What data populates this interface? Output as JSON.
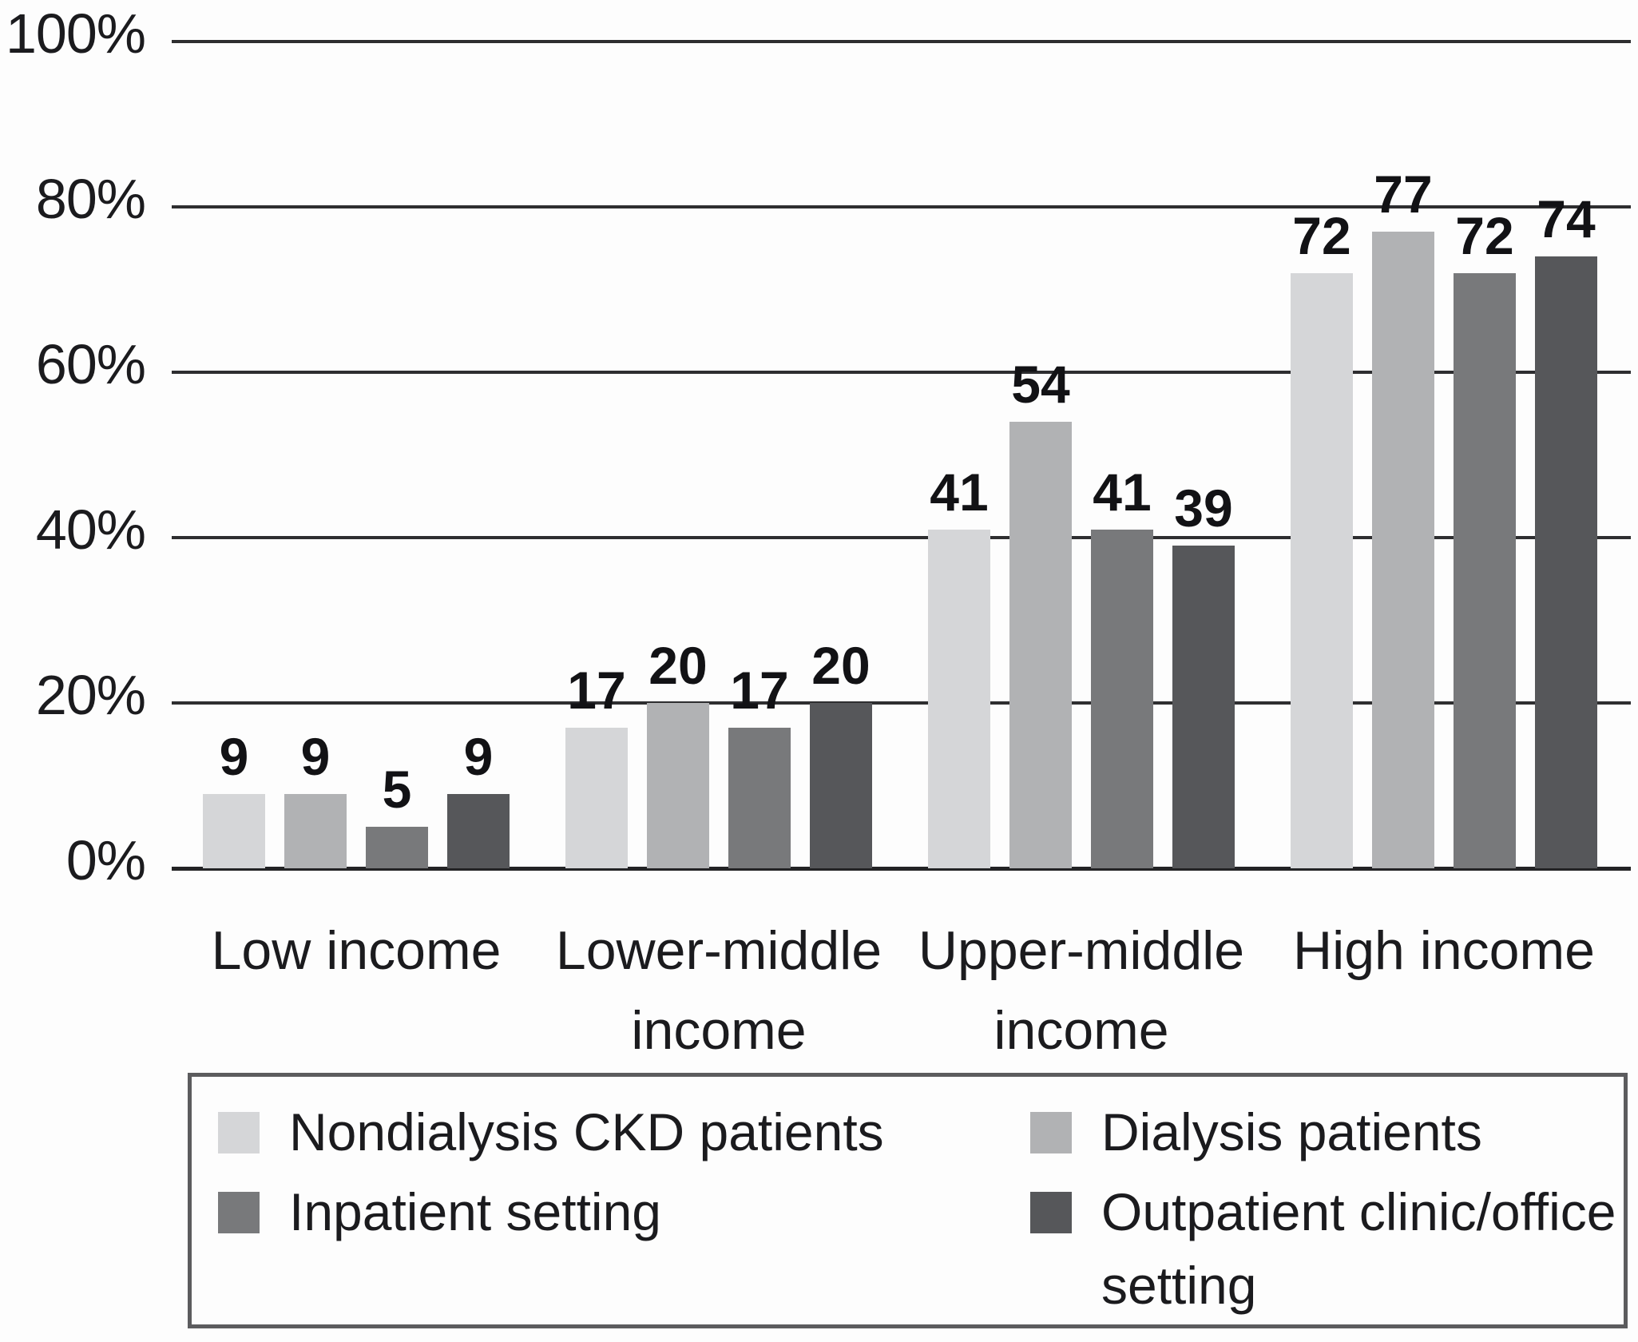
{
  "chart_data": {
    "type": "bar",
    "title": "",
    "categories": [
      "Low income",
      "Lower-middle income",
      "Upper-middle income",
      "High income"
    ],
    "series": [
      {
        "name": "Nondialysis CKD patients",
        "values": [
          9,
          17,
          41,
          72
        ]
      },
      {
        "name": "Dialysis patients",
        "values": [
          9,
          20,
          54,
          77
        ]
      },
      {
        "name": "Inpatient setting",
        "values": [
          5,
          17,
          41,
          72
        ]
      },
      {
        "name": "Outpatient clinic/office setting",
        "values": [
          9,
          20,
          39,
          74
        ]
      }
    ],
    "value_labels": [
      [
        9,
        9,
        5,
        9
      ],
      [
        17,
        20,
        17,
        20
      ],
      [
        41,
        54,
        41,
        39
      ],
      [
        72,
        77,
        72,
        74
      ]
    ],
    "yticks": [
      "0%",
      "20%",
      "40%",
      "60%",
      "80%",
      "100%"
    ],
    "ylim": [
      0,
      100
    ],
    "grid": true,
    "legend_position": "bottom"
  },
  "presentation": {
    "series_colors": [
      "#d5d6d8",
      "#b1b2b4",
      "#78797b",
      "#56575a"
    ],
    "gridline_color": "#2e2e30",
    "category_lines": [
      [
        "Low income"
      ],
      [
        "Lower-middle",
        "income"
      ],
      [
        "Upper-middle",
        "income"
      ],
      [
        "High income"
      ]
    ],
    "legend_lines": [
      [
        "Nondialysis CKD patients"
      ],
      [
        "Dialysis patients"
      ],
      [
        "Inpatient setting"
      ],
      [
        "Outpatient clinic/office",
        "setting"
      ]
    ]
  }
}
